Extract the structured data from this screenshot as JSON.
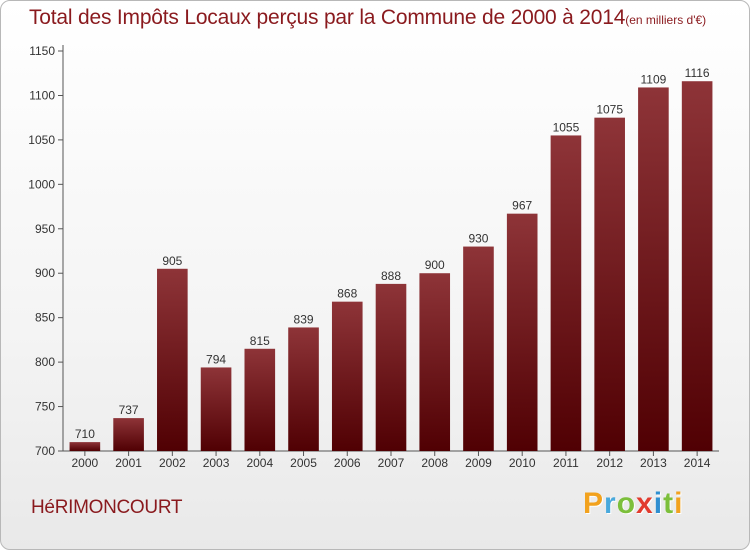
{
  "title": "Total des Impôts Locaux perçus par la Commune de 2000 à 2014",
  "title_unit": "(en milliers d'€)",
  "commune": "HéRIMONCOURT",
  "logo": {
    "letters": [
      "P",
      "r",
      "o",
      "x",
      "i",
      "t",
      "i"
    ],
    "colors": [
      "#f2a21e",
      "#49a9dc",
      "#7cbf3b",
      "#e23b2e",
      "#2f8fd1",
      "#7cbf3b",
      "#f2a21e"
    ]
  },
  "colors": {
    "bar_top": "#8e3438",
    "bar_bottom": "#500003",
    "text": "#8a1a1e"
  },
  "chart_data": {
    "type": "bar",
    "title": "Total des Impôts Locaux perçus par la Commune de 2000 à 2014",
    "categories": [
      "2000",
      "2001",
      "2002",
      "2003",
      "2004",
      "2005",
      "2006",
      "2007",
      "2008",
      "2009",
      "2010",
      "2011",
      "2012",
      "2013",
      "2014"
    ],
    "values": [
      710,
      737,
      905,
      794,
      815,
      839,
      868,
      888,
      900,
      930,
      967,
      1055,
      1075,
      1109,
      1116
    ],
    "ylim": [
      700,
      1150
    ],
    "yticks": [
      700,
      750,
      800,
      850,
      900,
      950,
      1000,
      1050,
      1100,
      1150
    ],
    "grid": false,
    "xlabel": "",
    "ylabel": ""
  }
}
